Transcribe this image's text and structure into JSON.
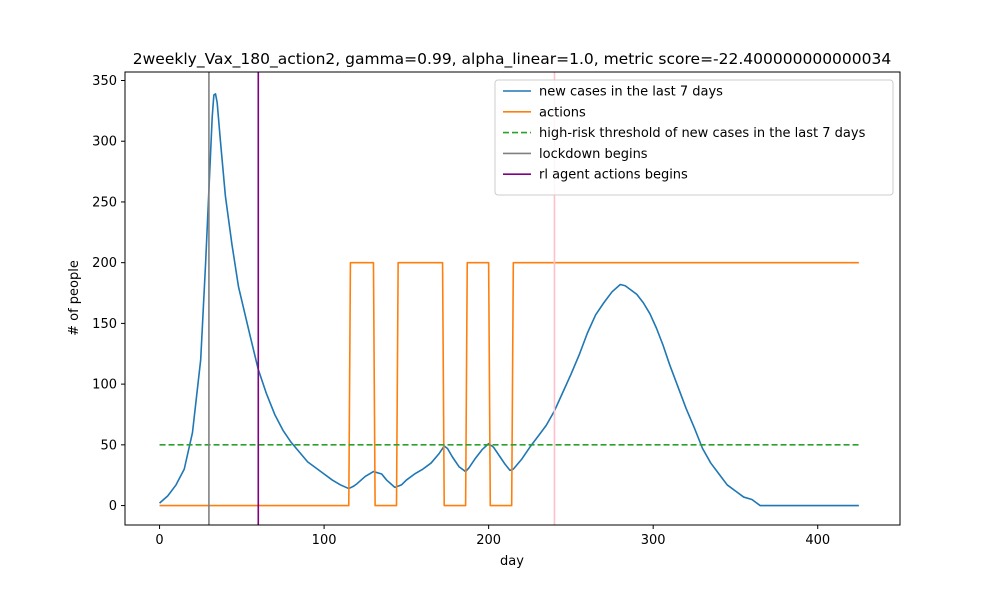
{
  "chart_data": {
    "type": "line",
    "title": "2weekly_Vax_180_action2, gamma=0.99, alpha_linear=1.0, metric score=-22.400000000000034",
    "xlabel": "day",
    "ylabel": "# of people",
    "xlim": [
      -21,
      450
    ],
    "ylim": [
      -16,
      357
    ],
    "xticks": [
      0,
      100,
      200,
      300,
      400
    ],
    "yticks": [
      0,
      50,
      100,
      150,
      200,
      250,
      300,
      350
    ],
    "grid": false,
    "legend_position": "top-right",
    "series": [
      {
        "name": "new cases in the last 7 days",
        "color": "#1f77b4",
        "style": "solid",
        "points": [
          [
            0,
            2
          ],
          [
            5,
            8
          ],
          [
            10,
            17
          ],
          [
            15,
            30
          ],
          [
            20,
            60
          ],
          [
            25,
            120
          ],
          [
            28,
            200
          ],
          [
            30,
            260
          ],
          [
            32,
            320
          ],
          [
            33,
            338
          ],
          [
            34,
            339
          ],
          [
            35,
            332
          ],
          [
            37,
            300
          ],
          [
            40,
            255
          ],
          [
            44,
            215
          ],
          [
            48,
            180
          ],
          [
            55,
            140
          ],
          [
            60,
            112
          ],
          [
            65,
            92
          ],
          [
            70,
            75
          ],
          [
            75,
            62
          ],
          [
            80,
            52
          ],
          [
            85,
            44
          ],
          [
            90,
            36
          ],
          [
            100,
            26
          ],
          [
            105,
            21
          ],
          [
            110,
            17
          ],
          [
            115,
            14
          ],
          [
            118,
            16
          ],
          [
            120,
            18
          ],
          [
            125,
            24
          ],
          [
            130,
            28
          ],
          [
            135,
            26
          ],
          [
            138,
            21
          ],
          [
            143,
            15
          ],
          [
            147,
            17
          ],
          [
            150,
            21
          ],
          [
            155,
            26
          ],
          [
            160,
            30
          ],
          [
            165,
            35
          ],
          [
            170,
            43
          ],
          [
            173,
            49
          ],
          [
            175,
            47
          ],
          [
            178,
            40
          ],
          [
            182,
            32
          ],
          [
            186,
            28
          ],
          [
            188,
            31
          ],
          [
            192,
            39
          ],
          [
            196,
            46
          ],
          [
            200,
            51
          ],
          [
            203,
            48
          ],
          [
            207,
            40
          ],
          [
            210,
            34
          ],
          [
            213,
            29
          ],
          [
            215,
            30
          ],
          [
            220,
            38
          ],
          [
            225,
            48
          ],
          [
            230,
            57
          ],
          [
            235,
            66
          ],
          [
            240,
            78
          ],
          [
            245,
            93
          ],
          [
            250,
            108
          ],
          [
            255,
            124
          ],
          [
            260,
            142
          ],
          [
            265,
            157
          ],
          [
            270,
            167
          ],
          [
            275,
            176
          ],
          [
            280,
            182
          ],
          [
            283,
            181
          ],
          [
            287,
            177
          ],
          [
            290,
            174
          ],
          [
            294,
            167
          ],
          [
            298,
            158
          ],
          [
            302,
            146
          ],
          [
            306,
            132
          ],
          [
            310,
            116
          ],
          [
            315,
            98
          ],
          [
            320,
            80
          ],
          [
            325,
            64
          ],
          [
            330,
            47
          ],
          [
            335,
            35
          ],
          [
            340,
            26
          ],
          [
            345,
            17
          ],
          [
            350,
            12
          ],
          [
            355,
            7
          ],
          [
            360,
            5
          ],
          [
            363,
            2
          ],
          [
            365,
            0
          ],
          [
            380,
            0
          ],
          [
            400,
            0
          ],
          [
            425,
            0
          ]
        ]
      },
      {
        "name": "actions",
        "color": "#ff7f0e",
        "style": "solid",
        "points": [
          [
            0,
            0
          ],
          [
            115,
            0
          ],
          [
            116,
            200
          ],
          [
            130,
            200
          ],
          [
            131,
            0
          ],
          [
            144,
            0
          ],
          [
            145,
            200
          ],
          [
            172,
            200
          ],
          [
            173,
            0
          ],
          [
            186,
            0
          ],
          [
            187,
            200
          ],
          [
            200,
            200
          ],
          [
            201,
            0
          ],
          [
            214,
            0
          ],
          [
            215,
            200
          ],
          [
            425,
            200
          ]
        ]
      },
      {
        "name": "high-risk threshold of new cases in the last 7 days",
        "color": "#2ca02c",
        "style": "dashed",
        "points": [
          [
            0,
            50
          ],
          [
            425,
            50
          ]
        ]
      }
    ],
    "vlines": [
      {
        "name": "lockdown begins",
        "x": 30,
        "color": "#808080"
      },
      {
        "name": "rl agent actions begins",
        "x": 60,
        "color": "#800080"
      },
      {
        "name": "",
        "x": 240,
        "color": "#ffc0cb"
      }
    ],
    "legend": [
      {
        "label": "new cases in the last 7 days",
        "color": "#1f77b4",
        "style": "solid"
      },
      {
        "label": "actions",
        "color": "#ff7f0e",
        "style": "solid"
      },
      {
        "label": "high-risk threshold of new cases in the last 7 days",
        "color": "#2ca02c",
        "style": "dashed"
      },
      {
        "label": "lockdown begins",
        "color": "#808080",
        "style": "solid"
      },
      {
        "label": "rl agent actions begins",
        "color": "#800080",
        "style": "solid"
      }
    ]
  }
}
